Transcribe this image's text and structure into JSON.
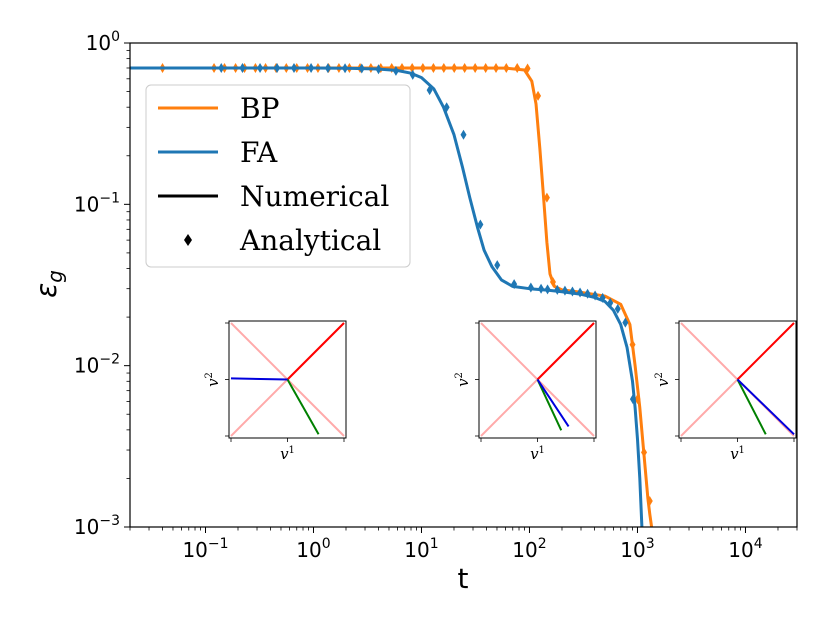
{
  "chart_data": {
    "type": "line",
    "title": "",
    "xlabel": "t",
    "ylabel": "ε",
    "ylabel_sub": "g",
    "xscale": "log",
    "yscale": "log",
    "xlim": [
      0.02,
      30000
    ],
    "ylim": [
      0.001,
      1
    ],
    "x_ticks": [
      {
        "value": 0.1,
        "base": "10",
        "exp": "−1"
      },
      {
        "value": 1,
        "base": "10",
        "exp": "0"
      },
      {
        "value": 10,
        "base": "10",
        "exp": "1"
      },
      {
        "value": 100,
        "base": "10",
        "exp": "2"
      },
      {
        "value": 1000,
        "base": "10",
        "exp": "3"
      },
      {
        "value": 10000,
        "base": "10",
        "exp": "4"
      }
    ],
    "y_ticks": [
      {
        "value": 0.001,
        "base": "10",
        "exp": "−3"
      },
      {
        "value": 0.01,
        "base": "10",
        "exp": "−2"
      },
      {
        "value": 0.1,
        "base": "10",
        "exp": "−1"
      },
      {
        "value": 1,
        "base": "10",
        "exp": "0"
      }
    ],
    "colors": {
      "BP": "#ff7f0e",
      "FA": "#1f77b4"
    },
    "series": [
      {
        "name": "BP",
        "color": "#ff7f0e",
        "x": [
          0.02,
          0.05,
          0.1,
          0.3,
          1,
          3,
          10,
          30,
          60,
          90,
          105,
          115,
          125,
          135,
          145,
          155,
          170,
          200,
          300,
          500,
          700,
          850,
          950,
          1050,
          1150,
          1250,
          1300,
          1350
        ],
        "y": [
          0.7,
          0.7,
          0.7,
          0.7,
          0.7,
          0.7,
          0.7,
          0.7,
          0.699,
          0.68,
          0.58,
          0.42,
          0.22,
          0.11,
          0.058,
          0.037,
          0.031,
          0.0295,
          0.0285,
          0.027,
          0.024,
          0.018,
          0.01,
          0.0055,
          0.0028,
          0.0015,
          0.0012,
          0.001
        ],
        "markers_x": [
          0.04,
          0.12,
          0.15,
          0.19,
          0.23,
          0.29,
          0.36,
          0.45,
          0.56,
          0.7,
          0.88,
          1.1,
          1.38,
          1.72,
          2.15,
          2.7,
          3.4,
          4.2,
          5.3,
          6.6,
          8.2,
          10.3,
          12.9,
          16.1,
          20.1,
          25.1,
          31.4,
          39.3,
          49,
          61,
          77,
          96,
          120,
          145,
          165,
          900,
          1000,
          1150,
          1300
        ],
        "markers_y": [
          0.7,
          0.7,
          0.7,
          0.7,
          0.7,
          0.7,
          0.7,
          0.7,
          0.7,
          0.7,
          0.7,
          0.7,
          0.7,
          0.7,
          0.7,
          0.7,
          0.7,
          0.7,
          0.7,
          0.7,
          0.7,
          0.7,
          0.7,
          0.7,
          0.7,
          0.7,
          0.7,
          0.7,
          0.7,
          0.7,
          0.7,
          0.695,
          0.47,
          0.11,
          0.033,
          0.0135,
          0.0062,
          0.0029,
          0.00145
        ]
      },
      {
        "name": "FA",
        "color": "#1f77b4",
        "x": [
          0.02,
          0.1,
          0.5,
          1,
          2,
          4,
          6,
          8,
          10,
          13,
          16,
          20,
          24,
          28,
          33,
          38,
          45,
          55,
          70,
          100,
          150,
          200,
          300,
          400,
          500,
          600,
          700,
          800,
          900,
          950,
          1000,
          1050,
          1100
        ],
        "y": [
          0.7,
          0.7,
          0.7,
          0.7,
          0.698,
          0.69,
          0.675,
          0.65,
          0.61,
          0.52,
          0.4,
          0.27,
          0.17,
          0.11,
          0.072,
          0.052,
          0.041,
          0.034,
          0.031,
          0.03,
          0.0293,
          0.0287,
          0.0277,
          0.0265,
          0.025,
          0.022,
          0.018,
          0.013,
          0.008,
          0.0055,
          0.0035,
          0.002,
          0.001
        ],
        "markers_x": [
          0.14,
          0.22,
          0.32,
          0.46,
          0.66,
          0.95,
          1.36,
          1.96,
          2.8,
          4,
          5.8,
          8.3,
          11.9,
          17.1,
          24.5,
          35.1,
          50.3,
          72.1,
          103,
          128,
          147,
          181,
          213,
          250,
          294,
          345,
          405,
          476,
          560,
          657,
          772,
          907
        ],
        "markers_y": [
          0.7,
          0.7,
          0.7,
          0.7,
          0.7,
          0.7,
          0.699,
          0.698,
          0.695,
          0.688,
          0.672,
          0.635,
          0.51,
          0.4,
          0.27,
          0.075,
          0.042,
          0.032,
          0.0305,
          0.03,
          0.0297,
          0.0295,
          0.0292,
          0.0288,
          0.0284,
          0.0279,
          0.0272,
          0.0263,
          0.0245,
          0.0225,
          0.0185,
          0.0062
        ]
      }
    ],
    "legend": {
      "placement": "upper-left",
      "entries": [
        {
          "label": "BP",
          "kind": "line",
          "color": "#ff7f0e"
        },
        {
          "label": "FA",
          "kind": "line",
          "color": "#1f77b4"
        },
        {
          "label": "Numerical",
          "kind": "line",
          "color": "#000000"
        },
        {
          "label": "Analytical",
          "kind": "marker",
          "color": "#000000"
        }
      ]
    },
    "insets": [
      {
        "xlabel": "v",
        "xlabel_sup": "1",
        "ylabel": "v",
        "ylabel_sup": "2",
        "blue_end": [
          -1.0,
          0.02
        ],
        "green_end": [
          0.55,
          -0.97
        ],
        "red_end": [
          1.0,
          1.0
        ]
      },
      {
        "xlabel": "v",
        "xlabel_sup": "1",
        "ylabel": "v",
        "ylabel_sup": "2",
        "blue_end": [
          0.55,
          -0.83
        ],
        "green_end": [
          0.42,
          -0.9
        ],
        "red_end": [
          1.0,
          1.0
        ]
      },
      {
        "xlabel": "v",
        "xlabel_sup": "1",
        "ylabel": "v",
        "ylabel_sup": "2",
        "blue_end": [
          1.0,
          -0.97
        ],
        "green_end": [
          0.5,
          -0.97
        ],
        "red_end": [
          1.0,
          1.0
        ]
      }
    ],
    "inset_colors": {
      "diagonal": "#ffaaaa",
      "red": "#ff0000",
      "blue": "#0000dd",
      "green": "#008000"
    }
  }
}
